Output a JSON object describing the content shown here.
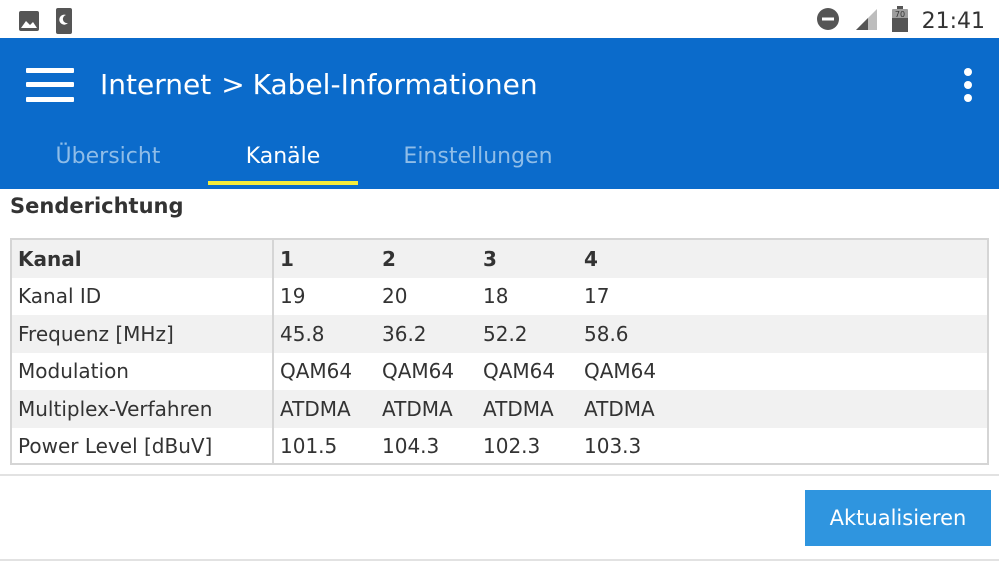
{
  "status_bar": {
    "time": "21:41",
    "battery_level": "70",
    "icons": [
      "image-icon",
      "phone-sleep-icon",
      "do-not-disturb-icon",
      "cell-signal-icon",
      "battery-icon"
    ]
  },
  "app_bar": {
    "breadcrumb_parent": "Internet",
    "breadcrumb_separator": ">",
    "breadcrumb_current": "Kabel-Informationen",
    "background_color": "#0b6bcb"
  },
  "tabs": [
    {
      "label": "Übersicht",
      "active": false
    },
    {
      "label": "Kanäle",
      "active": true
    },
    {
      "label": "Einstellungen",
      "active": false
    }
  ],
  "section": {
    "title": "Senderichtung"
  },
  "table": {
    "header": {
      "label": "Kanal",
      "values": [
        "1",
        "2",
        "3",
        "4"
      ]
    },
    "rows": [
      {
        "label": "Kanal ID",
        "values": [
          "19",
          "20",
          "18",
          "17"
        ]
      },
      {
        "label": "Frequenz [MHz]",
        "values": [
          "45.8",
          "36.2",
          "52.2",
          "58.6"
        ]
      },
      {
        "label": "Modulation",
        "values": [
          "QAM64",
          "QAM64",
          "QAM64",
          "QAM64"
        ]
      },
      {
        "label": "Multiplex-Verfahren",
        "values": [
          "ATDMA",
          "ATDMA",
          "ATDMA",
          "ATDMA"
        ]
      },
      {
        "label": "Power Level [dBuV]",
        "values": [
          "101.5",
          "104.3",
          "102.3",
          "103.3"
        ]
      }
    ]
  },
  "actions": {
    "refresh_label": "Aktualisieren",
    "accent_color": "#2f95df"
  }
}
